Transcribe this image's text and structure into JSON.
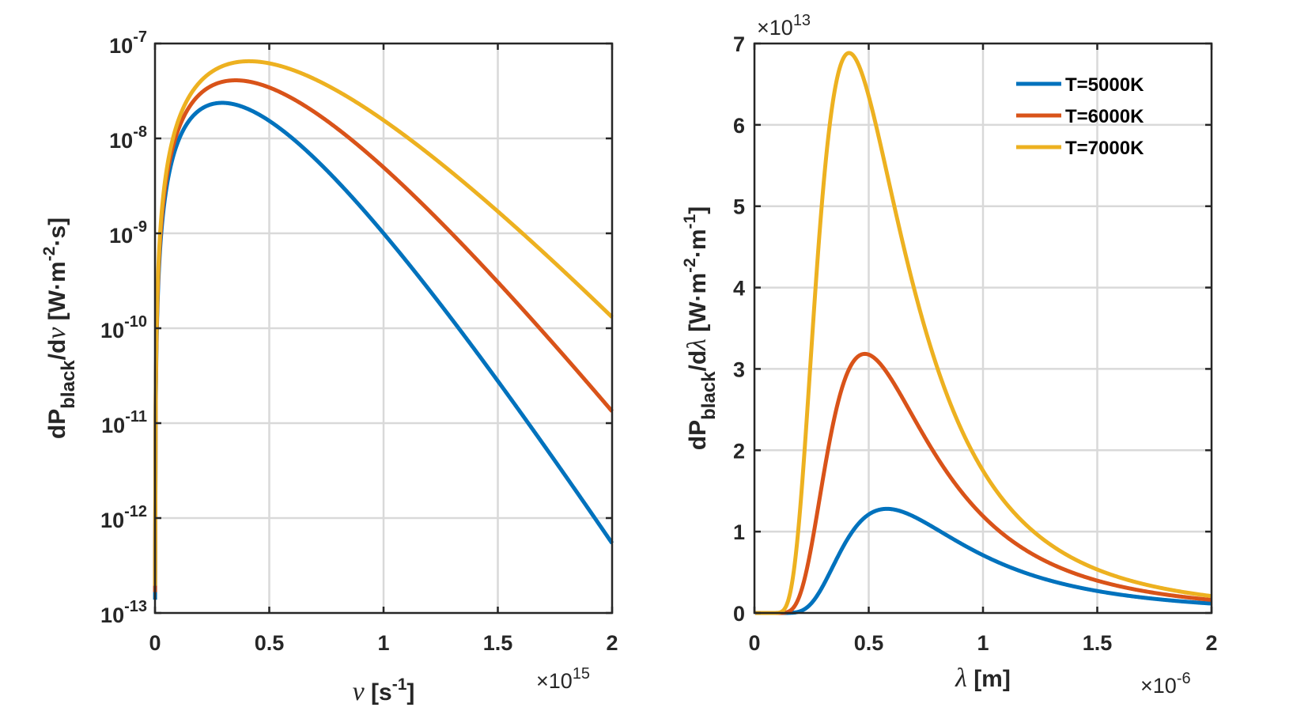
{
  "chart_data": [
    {
      "type": "line",
      "yscale": "log",
      "xlim": [
        0,
        2
      ],
      "ylim_exp": [
        -13,
        -7
      ],
      "x_ticks": [
        "0",
        "0.5",
        "1",
        "1.5",
        "2"
      ],
      "x_multiplier": "×10",
      "x_multiplier_exp": "15",
      "y_ticks": [
        {
          "base": "10",
          "exp": "-7"
        },
        {
          "base": "10",
          "exp": "-8"
        },
        {
          "base": "10",
          "exp": "-9"
        },
        {
          "base": "10",
          "exp": "-10"
        },
        {
          "base": "10",
          "exp": "-11"
        },
        {
          "base": "10",
          "exp": "-12"
        },
        {
          "base": "10",
          "exp": "-13"
        }
      ],
      "xlabel": {
        "sym": "ν",
        "pre": " [s",
        "sup": "-1",
        "post": "]"
      },
      "ylabel": {
        "a": "dP",
        "sub": "black",
        "b": "/d",
        "sym": "ν",
        "c": " [W·m",
        "sup": "-2",
        "d": "·s]"
      },
      "series": [
        {
          "name": "T=5000K",
          "temperature": 5000,
          "color": "#0072BD"
        },
        {
          "name": "T=6000K",
          "temperature": 6000,
          "color": "#D95319"
        },
        {
          "name": "T=7000K",
          "temperature": 7000,
          "color": "#EDB120"
        }
      ]
    },
    {
      "type": "line",
      "yscale": "linear",
      "xlim": [
        0,
        2
      ],
      "ylim": [
        0,
        7
      ],
      "x_ticks": [
        "0",
        "0.5",
        "1",
        "1.5",
        "2"
      ],
      "x_multiplier": "×10",
      "x_multiplier_exp": "-6",
      "y_ticks": [
        "0",
        "1",
        "2",
        "3",
        "4",
        "5",
        "6",
        "7"
      ],
      "y_multiplier": "×10",
      "y_multiplier_exp": "13",
      "xlabel": {
        "sym": "λ",
        "post": " [m]"
      },
      "ylabel": {
        "a": "dP",
        "sub": "black",
        "b": "/d",
        "sym": "λ",
        "c": " [W·m",
        "sup1": "-2",
        "d": "·m",
        "sup2": "-1",
        "e": "]"
      },
      "legend_position": "top-right",
      "series": [
        {
          "name": "T=5000K",
          "temperature": 5000,
          "color": "#0072BD",
          "peak": [
            0.58,
            1.28
          ]
        },
        {
          "name": "T=6000K",
          "temperature": 6000,
          "color": "#D95319",
          "peak": [
            0.48,
            3.19
          ]
        },
        {
          "name": "T=7000K",
          "temperature": 7000,
          "color": "#EDB120",
          "peak": [
            0.41,
            6.88
          ]
        }
      ]
    }
  ]
}
